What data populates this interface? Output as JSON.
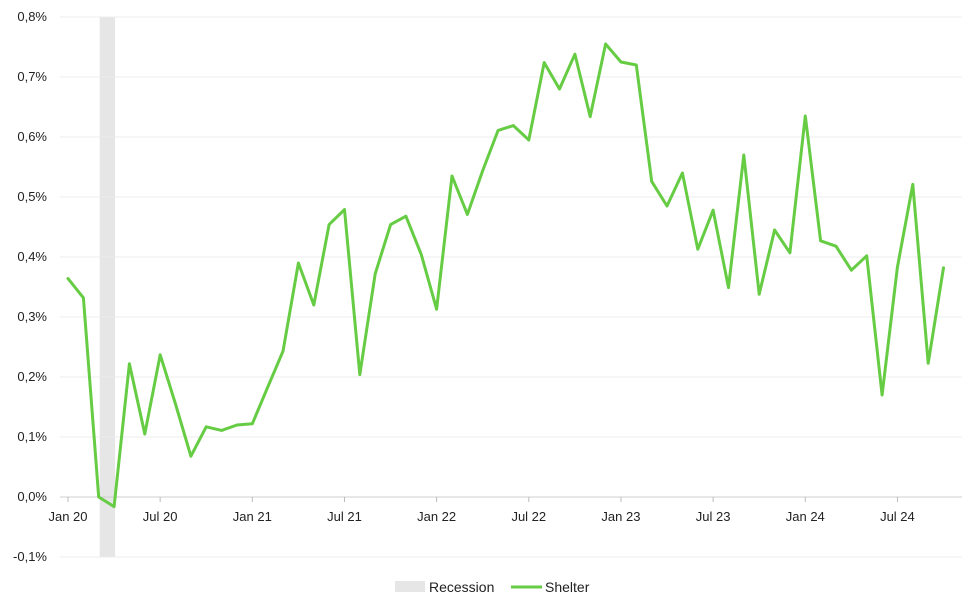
{
  "chart_data": {
    "type": "line",
    "x_start": "Jan 20",
    "x_step": "month",
    "ylim": [
      -0.1,
      0.8
    ],
    "yticks": [
      "-0,1%",
      "0,0%",
      "0,1%",
      "0,2%",
      "0,3%",
      "0,4%",
      "0,5%",
      "0,6%",
      "0,7%",
      "0,8%"
    ],
    "xticks": [
      "Jan 20",
      "Jul 20",
      "Jan 21",
      "Jul 21",
      "Jan 22",
      "Jul 22",
      "Jan 23",
      "Jul 23",
      "Jan 24",
      "Jul 24"
    ],
    "grid": "horizontal",
    "legend_position": "bottom",
    "recession": {
      "label": "Recession",
      "start": "Mar 20",
      "end": "Apr 20",
      "color": "#e6e6e6"
    },
    "series": [
      {
        "name": "Shelter",
        "color": "#66cc44",
        "values": [
          0.364,
          0.332,
          0.0,
          -0.016,
          0.222,
          0.105,
          0.237,
          0.155,
          0.068,
          0.117,
          0.111,
          0.12,
          0.122,
          0.183,
          0.243,
          0.39,
          0.32,
          0.454,
          0.479,
          0.204,
          0.372,
          0.454,
          0.468,
          0.404,
          0.313,
          0.535,
          0.471,
          0.544,
          0.611,
          0.619,
          0.595,
          0.724,
          0.68,
          0.738,
          0.634,
          0.755,
          0.725,
          0.72,
          0.526,
          0.485,
          0.54,
          0.413,
          0.478,
          0.349,
          0.57,
          0.338,
          0.445,
          0.407,
          0.635,
          0.427,
          0.418,
          0.378,
          0.402,
          0.17,
          0.383,
          0.521,
          0.223,
          0.382
        ]
      }
    ]
  }
}
